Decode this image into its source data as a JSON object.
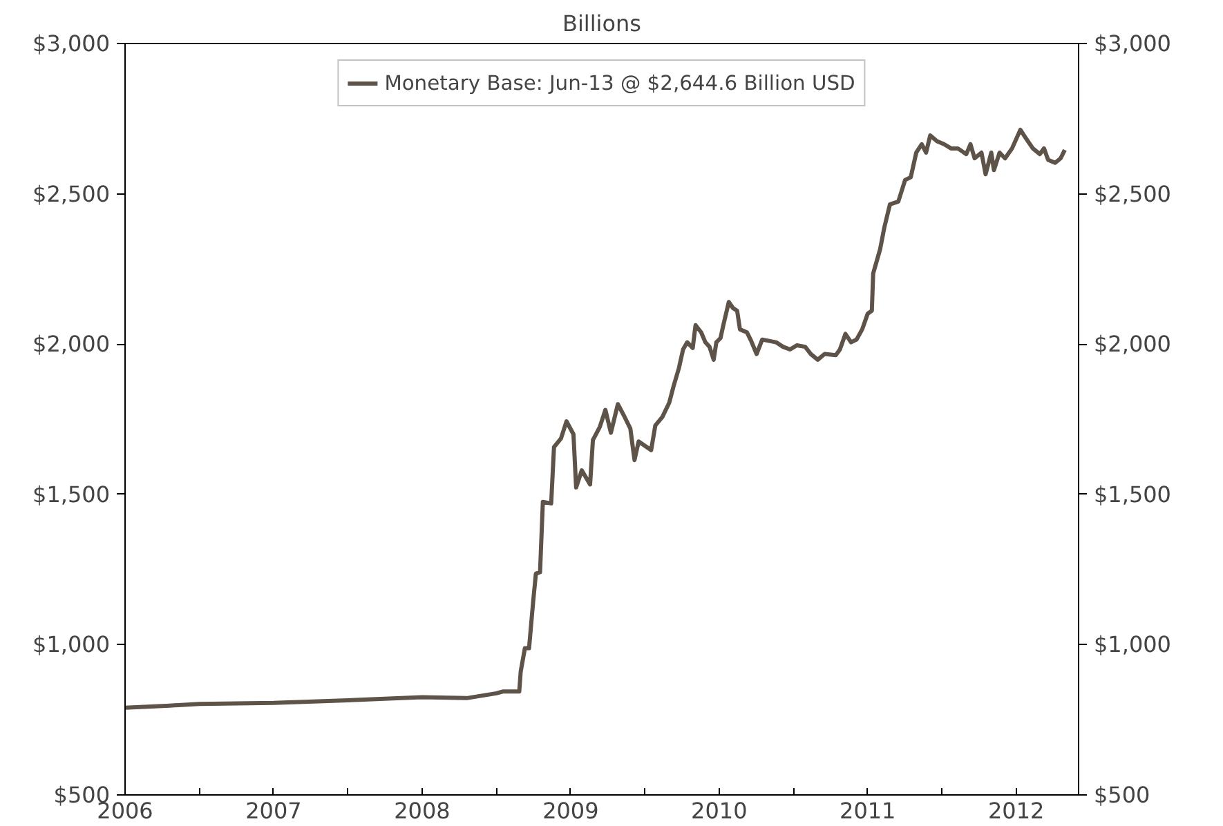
{
  "chart_data": {
    "type": "line",
    "title": "Billions",
    "x": [
      2006.0,
      2006.3,
      2006.5,
      2007.0,
      2007.5,
      2008.0,
      2008.3,
      2008.5,
      2008.542,
      2008.654,
      2008.664,
      2008.692,
      2008.72,
      2008.748,
      2008.766,
      2008.794,
      2008.813,
      2008.869,
      2008.888,
      2008.935,
      2008.972,
      2009.019,
      2009.037,
      2009.075,
      2009.131,
      2009.15,
      2009.196,
      2009.234,
      2009.271,
      2009.318,
      2009.364,
      2009.402,
      2009.43,
      2009.458,
      2009.542,
      2009.57,
      2009.617,
      2009.664,
      2009.692,
      2009.729,
      2009.757,
      2009.785,
      2009.822,
      2009.841,
      2009.879,
      2009.907,
      2009.935,
      2009.963,
      2009.981,
      2010.009,
      2010.028,
      2010.065,
      2010.093,
      2010.121,
      2010.14,
      2010.187,
      2010.215,
      2010.252,
      2010.29,
      2010.383,
      2010.43,
      2010.477,
      2010.523,
      2010.579,
      2010.617,
      2010.664,
      2010.71,
      2010.785,
      2010.813,
      2010.85,
      2010.888,
      2010.925,
      2010.963,
      2011.0,
      2011.028,
      2011.037,
      2011.084,
      2011.112,
      2011.15,
      2011.206,
      2011.252,
      2011.29,
      2011.327,
      2011.364,
      2011.393,
      2011.421,
      2011.467,
      2011.514,
      2011.561,
      2011.607,
      2011.664,
      2011.692,
      2011.72,
      2011.766,
      2011.794,
      2011.832,
      2011.85,
      2011.888,
      2011.925,
      2011.972,
      2012.028,
      2012.065,
      2012.112,
      2012.159,
      2012.187,
      2012.215,
      2012.262,
      2012.299,
      2012.327
    ],
    "series": [
      {
        "name": "Monetary Base: Jun-13 @ $2,644.6 Billion USD",
        "color": "#5e5349",
        "values": [
          790,
          797,
          803,
          806,
          815,
          825,
          822,
          838,
          844,
          844,
          911,
          988,
          988,
          1145,
          1236,
          1241,
          1475,
          1470,
          1657,
          1686,
          1743,
          1700,
          1523,
          1580,
          1533,
          1681,
          1724,
          1781,
          1705,
          1800,
          1757,
          1719,
          1614,
          1676,
          1647,
          1729,
          1757,
          1805,
          1858,
          1920,
          1982,
          2006,
          1987,
          2063,
          2039,
          2006,
          1991,
          1948,
          2006,
          2020,
          2063,
          2140,
          2120,
          2111,
          2049,
          2039,
          2011,
          1967,
          2015,
          2006,
          1991,
          1982,
          1996,
          1991,
          1967,
          1948,
          1967,
          1963,
          1982,
          2034,
          2006,
          2015,
          2049,
          2101,
          2111,
          2235,
          2316,
          2388,
          2465,
          2474,
          2546,
          2555,
          2637,
          2665,
          2637,
          2694,
          2675,
          2665,
          2651,
          2651,
          2632,
          2665,
          2618,
          2637,
          2565,
          2637,
          2579,
          2637,
          2618,
          2651,
          2713,
          2685,
          2651,
          2632,
          2651,
          2613,
          2603,
          2618,
          2646
        ]
      }
    ],
    "xlim": [
      2006,
      2012.42
    ],
    "xticks": [
      {
        "value": 2006,
        "label": "2006"
      },
      {
        "value": 2006.5,
        "label": null
      },
      {
        "value": 2007,
        "label": "2007"
      },
      {
        "value": 2007.5,
        "label": null
      },
      {
        "value": 2008,
        "label": "2008"
      },
      {
        "value": 2008.5,
        "label": null
      },
      {
        "value": 2009,
        "label": "2009"
      },
      {
        "value": 2009.5,
        "label": null
      },
      {
        "value": 2010,
        "label": "2010"
      },
      {
        "value": 2010.5,
        "label": null
      },
      {
        "value": 2011,
        "label": "2011"
      },
      {
        "value": 2011.5,
        "label": null
      },
      {
        "value": 2012,
        "label": "2012"
      }
    ],
    "ylim": [
      500,
      3000
    ],
    "yticks": [
      {
        "value": 500,
        "label": "$500"
      },
      {
        "value": 1000,
        "label": "$1,000"
      },
      {
        "value": 1500,
        "label": "$1,500"
      },
      {
        "value": 2000,
        "label": "$2,000"
      },
      {
        "value": 2500,
        "label": "$2,500"
      },
      {
        "value": 3000,
        "label": "$3,000"
      }
    ],
    "y2lim": [
      500,
      3000
    ],
    "y2ticks": [
      {
        "value": 500,
        "label": "$500"
      },
      {
        "value": 1000,
        "label": "$1,000"
      },
      {
        "value": 1500,
        "label": "$1,500"
      },
      {
        "value": 2000,
        "label": "$2,000"
      },
      {
        "value": 2500,
        "label": "$2,500"
      },
      {
        "value": 3000,
        "label": "$3,000"
      }
    ],
    "legend": "top",
    "grid": false,
    "line_style": "solid"
  }
}
